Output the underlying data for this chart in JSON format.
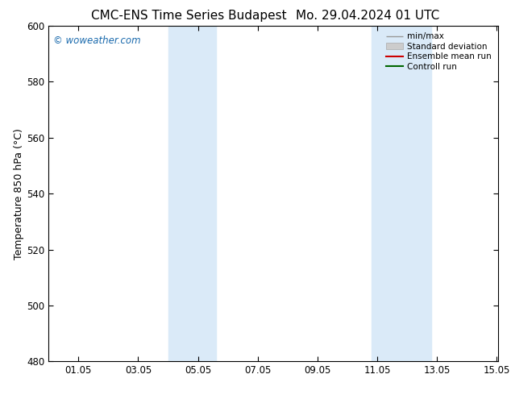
{
  "title_left": "CMC-ENS Time Series Budapest",
  "title_right": "Mo. 29.04.2024 01 UTC",
  "ylabel": "Temperature 850 hPa (°C)",
  "xlim": [
    0.0,
    15.05
  ],
  "ylim": [
    480,
    600
  ],
  "yticks": [
    480,
    500,
    520,
    540,
    560,
    580,
    600
  ],
  "xtick_labels": [
    "01.05",
    "03.05",
    "05.05",
    "07.05",
    "09.05",
    "11.05",
    "13.05",
    "15.05"
  ],
  "xtick_positions": [
    1.0,
    3.0,
    5.0,
    7.0,
    9.0,
    11.0,
    13.0,
    15.0
  ],
  "shaded_bands": [
    {
      "xmin": 4.0,
      "xmax": 5.6
    },
    {
      "xmin": 10.8,
      "xmax": 12.8
    }
  ],
  "shade_color": "#daeaf8",
  "background_color": "#ffffff",
  "watermark_text": "© woweather.com",
  "watermark_color": "#1a6aad",
  "grid_color": "#cccccc",
  "title_fontsize": 11,
  "label_fontsize": 9,
  "tick_fontsize": 8.5
}
